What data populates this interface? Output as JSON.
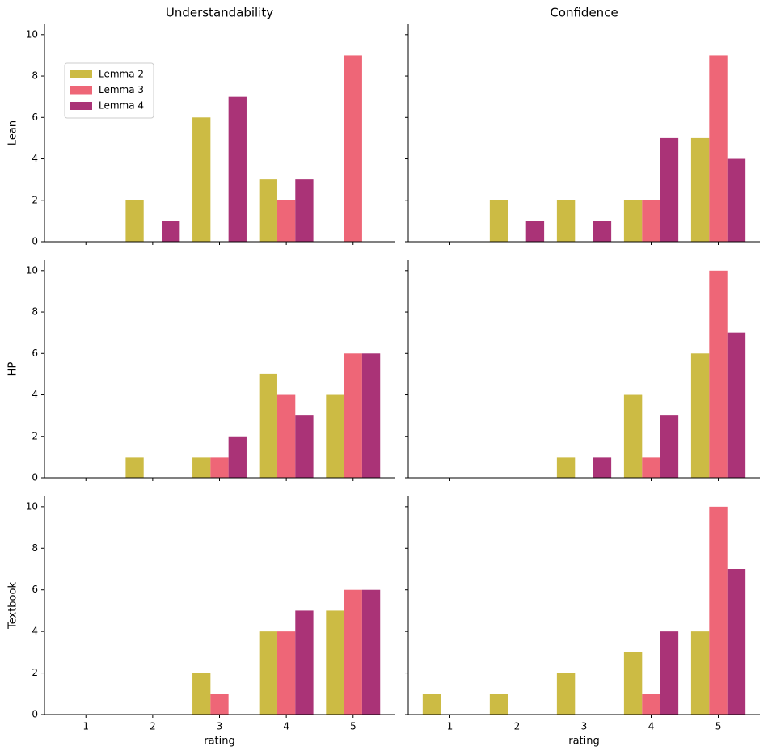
{
  "chart_data": [
    {
      "type": "bar",
      "title": "Understandability",
      "ylabel": "Lean",
      "legend": "upper left",
      "x": [
        1,
        2,
        3,
        4,
        5
      ],
      "xlim": [
        0.38,
        5.62
      ],
      "ylim": [
        0,
        10.5
      ],
      "yticks": [
        0,
        2,
        4,
        6,
        8,
        10
      ],
      "series": [
        {
          "name": "Lemma 2",
          "color": "#ccbb44",
          "values": [
            0,
            2,
            6,
            3,
            0
          ]
        },
        {
          "name": "Lemma 3",
          "color": "#ee6677",
          "values": [
            0,
            0,
            0,
            2,
            9
          ]
        },
        {
          "name": "Lemma 4",
          "color": "#aa3377",
          "values": [
            0,
            1,
            7,
            3,
            0
          ]
        }
      ]
    },
    {
      "type": "bar",
      "title": "Confidence",
      "x": [
        1,
        2,
        3,
        4,
        5
      ],
      "xlim": [
        0.38,
        5.62
      ],
      "ylim": [
        0,
        10.5
      ],
      "series": [
        {
          "color": "#ccbb44",
          "values": [
            0,
            2,
            2,
            2,
            5
          ]
        },
        {
          "color": "#ee6677",
          "values": [
            0,
            0,
            0,
            2,
            9
          ]
        },
        {
          "color": "#aa3377",
          "values": [
            0,
            1,
            1,
            5,
            4
          ]
        }
      ]
    },
    {
      "type": "bar",
      "ylabel": "HP",
      "x": [
        1,
        2,
        3,
        4,
        5
      ],
      "xlim": [
        0.38,
        5.62
      ],
      "ylim": [
        0,
        10.5
      ],
      "yticks": [
        0,
        2,
        4,
        6,
        8,
        10
      ],
      "series": [
        {
          "color": "#ccbb44",
          "values": [
            0,
            1,
            1,
            5,
            4
          ]
        },
        {
          "color": "#ee6677",
          "values": [
            0,
            0,
            1,
            4,
            6
          ]
        },
        {
          "color": "#aa3377",
          "values": [
            0,
            0,
            2,
            3,
            6
          ]
        }
      ]
    },
    {
      "type": "bar",
      "x": [
        1,
        2,
        3,
        4,
        5
      ],
      "xlim": [
        0.38,
        5.62
      ],
      "ylim": [
        0,
        10.5
      ],
      "series": [
        {
          "color": "#ccbb44",
          "values": [
            0,
            0,
            1,
            4,
            6
          ]
        },
        {
          "color": "#ee6677",
          "values": [
            0,
            0,
            0,
            1,
            10
          ]
        },
        {
          "color": "#aa3377",
          "values": [
            0,
            0,
            1,
            3,
            7
          ]
        }
      ]
    },
    {
      "type": "bar",
      "ylabel": "Textbook",
      "xlabel": "rating",
      "x": [
        1,
        2,
        3,
        4,
        5
      ],
      "xlim": [
        0.38,
        5.62
      ],
      "ylim": [
        0,
        10.5
      ],
      "xticks": [
        1,
        2,
        3,
        4,
        5
      ],
      "yticks": [
        0,
        2,
        4,
        6,
        8,
        10
      ],
      "series": [
        {
          "color": "#ccbb44",
          "values": [
            0,
            0,
            2,
            4,
            5
          ]
        },
        {
          "color": "#ee6677",
          "values": [
            0,
            0,
            1,
            4,
            6
          ]
        },
        {
          "color": "#aa3377",
          "values": [
            0,
            0,
            0,
            5,
            6
          ]
        }
      ]
    },
    {
      "type": "bar",
      "xlabel": "rating",
      "x": [
        1,
        2,
        3,
        4,
        5
      ],
      "xlim": [
        0.38,
        5.62
      ],
      "ylim": [
        0,
        10.5
      ],
      "xticks": [
        1,
        2,
        3,
        4,
        5
      ],
      "series": [
        {
          "color": "#ccbb44",
          "values": [
            1,
            1,
            2,
            3,
            4
          ]
        },
        {
          "color": "#ee6677",
          "values": [
            0,
            0,
            0,
            1,
            10
          ]
        },
        {
          "color": "#aa3377",
          "values": [
            0,
            0,
            0,
            4,
            7
          ]
        }
      ]
    }
  ]
}
